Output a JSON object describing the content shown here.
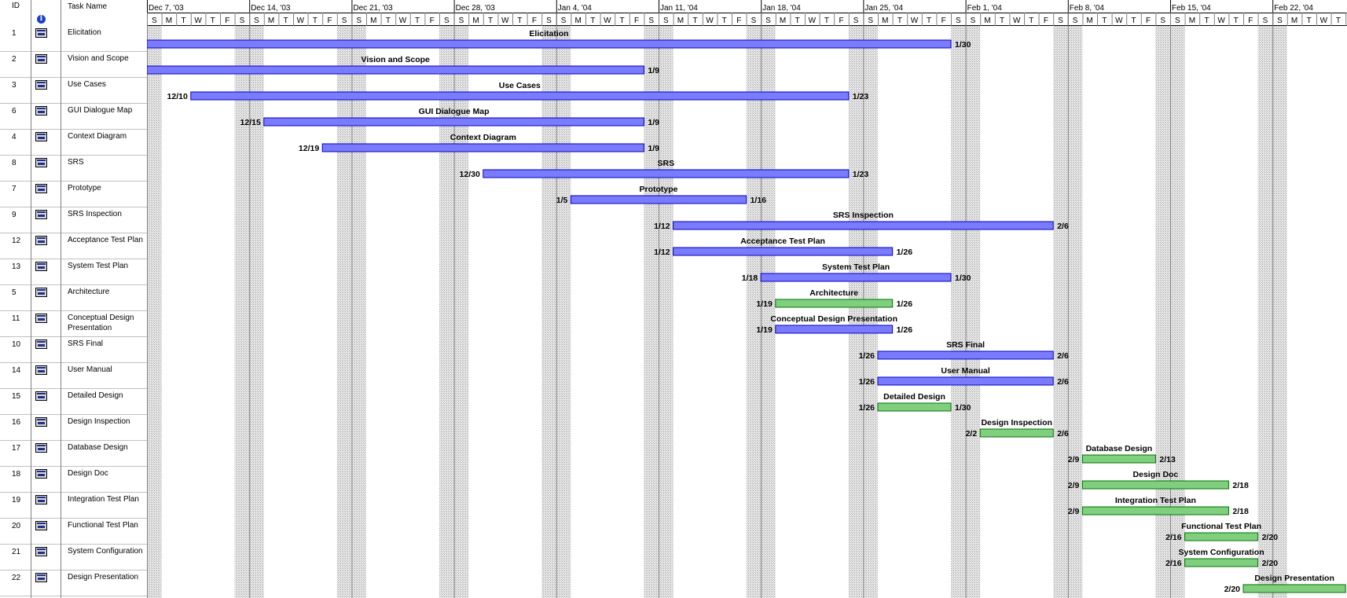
{
  "columns": {
    "id": "ID",
    "task_name": "Task Name",
    "info_icon": "info-icon"
  },
  "colors": {
    "critical": "#7b7bff",
    "critical_border": "#0000c0",
    "normal": "#7fcf7f",
    "normal_border": "#007000",
    "weekend": "#d9d9d9"
  },
  "chart_data": {
    "type": "gantt",
    "timescale": {
      "weeks": [
        "Dec 7, '03",
        "Dec 14, '03",
        "Dec 21, '03",
        "Dec 28, '03",
        "Jan 4, '04",
        "Jan 11, '04",
        "Jan 18, '04",
        "Jan 25, '04",
        "Feb 1, '04",
        "Feb 8, '04",
        "Feb 15, '04",
        "Feb 22, '04"
      ],
      "day_letters": [
        "S",
        "M",
        "T",
        "W",
        "T",
        "F",
        "S"
      ],
      "start_date": "2003-12-07",
      "end_date": "2004-02-26"
    },
    "tasks": [
      {
        "id": "1",
        "name": "Elicitation",
        "start": "2003-12-07",
        "finish": "2004-01-30",
        "start_label": "",
        "finish_label": "1/30",
        "critical": true
      },
      {
        "id": "2",
        "name": "Vision and Scope",
        "start": "2003-12-07",
        "finish": "2004-01-09",
        "start_label": "",
        "finish_label": "1/9",
        "critical": true
      },
      {
        "id": "3",
        "name": "Use Cases",
        "start": "2003-12-10",
        "finish": "2004-01-23",
        "start_label": "12/10",
        "finish_label": "1/23",
        "critical": true
      },
      {
        "id": "6",
        "name": "GUI Dialogue Map",
        "start": "2003-12-15",
        "finish": "2004-01-09",
        "start_label": "12/15",
        "finish_label": "1/9",
        "critical": true
      },
      {
        "id": "4",
        "name": "Context Diagram",
        "start": "2003-12-19",
        "finish": "2004-01-09",
        "start_label": "12/19",
        "finish_label": "1/9",
        "critical": true
      },
      {
        "id": "8",
        "name": "SRS",
        "start": "2003-12-30",
        "finish": "2004-01-23",
        "start_label": "12/30",
        "finish_label": "1/23",
        "critical": true
      },
      {
        "id": "7",
        "name": "Prototype",
        "start": "2004-01-05",
        "finish": "2004-01-16",
        "start_label": "1/5",
        "finish_label": "1/16",
        "critical": true
      },
      {
        "id": "9",
        "name": "SRS Inspection",
        "start": "2004-01-12",
        "finish": "2004-02-06",
        "start_label": "1/12",
        "finish_label": "2/6",
        "critical": true
      },
      {
        "id": "12",
        "name": "Acceptance Test Plan",
        "start": "2004-01-12",
        "finish": "2004-01-26",
        "start_label": "1/12",
        "finish_label": "1/26",
        "critical": true
      },
      {
        "id": "13",
        "name": "System Test Plan",
        "start": "2004-01-18",
        "finish": "2004-01-30",
        "start_label": "1/18",
        "finish_label": "1/30",
        "critical": true
      },
      {
        "id": "5",
        "name": "Architecture",
        "start": "2004-01-19",
        "finish": "2004-01-26",
        "start_label": "1/19",
        "finish_label": "1/26",
        "critical": false
      },
      {
        "id": "11",
        "name": "Conceptual Design Presentation",
        "start": "2004-01-19",
        "finish": "2004-01-26",
        "start_label": "1/19",
        "finish_label": "1/26",
        "critical": true
      },
      {
        "id": "10",
        "name": "SRS Final",
        "start": "2004-01-26",
        "finish": "2004-02-06",
        "start_label": "1/26",
        "finish_label": "2/6",
        "critical": true
      },
      {
        "id": "14",
        "name": "User Manual",
        "start": "2004-01-26",
        "finish": "2004-02-06",
        "start_label": "1/26",
        "finish_label": "2/6",
        "critical": true
      },
      {
        "id": "15",
        "name": "Detailed Design",
        "start": "2004-01-26",
        "finish": "2004-01-30",
        "start_label": "1/26",
        "finish_label": "1/30",
        "critical": false
      },
      {
        "id": "16",
        "name": "Design Inspection",
        "start": "2004-02-02",
        "finish": "2004-02-06",
        "start_label": "2/2",
        "finish_label": "2/6",
        "critical": false
      },
      {
        "id": "17",
        "name": "Database Design",
        "start": "2004-02-09",
        "finish": "2004-02-13",
        "start_label": "2/9",
        "finish_label": "2/13",
        "critical": false
      },
      {
        "id": "18",
        "name": "Design Doc",
        "start": "2004-02-09",
        "finish": "2004-02-18",
        "start_label": "2/9",
        "finish_label": "2/18",
        "critical": false
      },
      {
        "id": "19",
        "name": "Integration Test Plan",
        "start": "2004-02-09",
        "finish": "2004-02-18",
        "start_label": "2/9",
        "finish_label": "2/18",
        "critical": false
      },
      {
        "id": "20",
        "name": "Functional Test Plan",
        "start": "2004-02-16",
        "finish": "2004-02-20",
        "start_label": "2/16",
        "finish_label": "2/20",
        "critical": false
      },
      {
        "id": "21",
        "name": "System Configuration",
        "start": "2004-02-16",
        "finish": "2004-02-20",
        "start_label": "2/16",
        "finish_label": "2/20",
        "critical": false
      },
      {
        "id": "22",
        "name": "Design Presentation",
        "start": "2004-02-20",
        "finish": "2004-02-26",
        "start_label": "2/20",
        "finish_label": "",
        "critical": false
      }
    ]
  }
}
